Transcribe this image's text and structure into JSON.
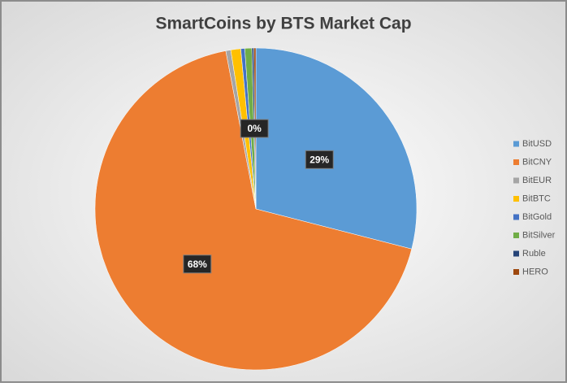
{
  "chart_data": {
    "type": "pie",
    "title": "SmartCoins by BTS Market Cap",
    "categories": [
      "BitUSD",
      "BitCNY",
      "BitEUR",
      "BitBTC",
      "BitGold",
      "BitSilver",
      "Ruble",
      "HERO"
    ],
    "values": [
      29,
      68,
      0.5,
      1,
      0.4,
      0.7,
      0.2,
      0.2
    ],
    "value_labels": [
      "29%",
      "68%",
      null,
      null,
      null,
      null,
      "0%",
      null
    ],
    "colors": [
      "#5b9bd5",
      "#ed7d31",
      "#a5a5a5",
      "#ffc000",
      "#4472c4",
      "#70ad47",
      "#264478",
      "#9e480e"
    ],
    "legend": "right"
  }
}
